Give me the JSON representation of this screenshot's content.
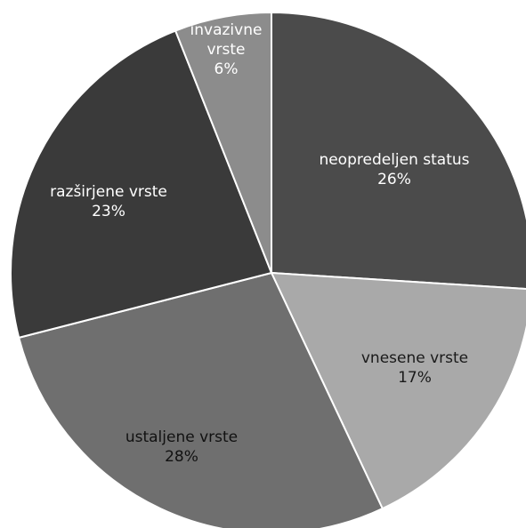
{
  "chart_data": {
    "type": "pie",
    "slices": [
      {
        "label": "neopredeljen status",
        "value": 26,
        "value_label": "26%",
        "color": "#4b4b4b",
        "label_color": "#ffffff"
      },
      {
        "label": "vnesene vrste",
        "value": 17,
        "value_label": "17%",
        "color": "#a9a9a9",
        "label_color": "#1a1a1a"
      },
      {
        "label": "ustaljene vrste",
        "value": 28,
        "value_label": "28%",
        "color": "#6f6f6f",
        "label_color": "#111111"
      },
      {
        "label": "razširjene vrste",
        "value": 23,
        "value_label": "23%",
        "color": "#3a3a3a",
        "label_color": "#ffffff"
      },
      {
        "label": "invazivne vrste",
        "value": 6,
        "value_label": "6%",
        "color": "#8c8c8c",
        "label_color": "#ffffff"
      }
    ],
    "label_lines": [
      [
        "neopredeljen status",
        "26%"
      ],
      [
        "vnesene vrste",
        "17%"
      ],
      [
        "ustaljene vrste",
        "28%"
      ],
      [
        "razširjene vrste",
        "23%"
      ],
      [
        "invazivne",
        "vrste",
        "6%"
      ]
    ],
    "start_angle": "12 o'clock",
    "direction": "clockwise",
    "legend": "none"
  }
}
